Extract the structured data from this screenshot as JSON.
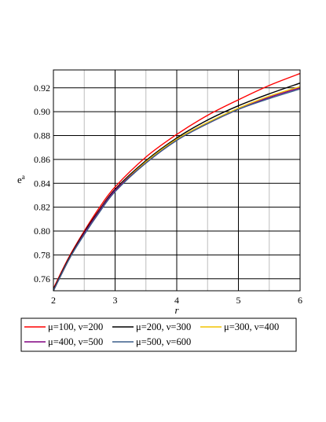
{
  "chart_data": {
    "type": "line",
    "title": "",
    "xlabel": "r",
    "ylabel": "e",
    "ylabel_sup": "a",
    "xlim": [
      2,
      6
    ],
    "ylim": [
      0.75,
      0.935
    ],
    "x_ticks": [
      "2",
      "3",
      "4",
      "5",
      "6"
    ],
    "y_ticks": [
      "0.76",
      "0.78",
      "0.80",
      "0.82",
      "0.84",
      "0.86",
      "0.88",
      "0.90",
      "0.92"
    ],
    "grid": true,
    "legend_position": "bottom",
    "series": [
      {
        "name": "μ=100, ν=200",
        "color": "#ff0000",
        "x": [
          2,
          2.25,
          2.5,
          2.75,
          3,
          3.5,
          4,
          4.5,
          5,
          5.5,
          6
        ],
        "y": [
          0.752,
          0.778,
          0.8,
          0.82,
          0.837,
          0.862,
          0.881,
          0.897,
          0.91,
          0.922,
          0.932
        ]
      },
      {
        "name": "μ=200, ν=300",
        "color": "#000000",
        "x": [
          2,
          2.25,
          2.5,
          2.75,
          3,
          3.5,
          4,
          4.5,
          5,
          5.5,
          6
        ],
        "y": [
          0.751,
          0.777,
          0.799,
          0.818,
          0.835,
          0.859,
          0.878,
          0.893,
          0.905,
          0.915,
          0.924
        ]
      },
      {
        "name": "μ=300, ν=400",
        "color": "#f2c300",
        "x": [
          2,
          2.25,
          2.5,
          2.75,
          3,
          3.5,
          4,
          4.5,
          5,
          5.5,
          6
        ],
        "y": [
          0.75,
          0.776,
          0.798,
          0.817,
          0.834,
          0.858,
          0.877,
          0.891,
          0.903,
          0.913,
          0.921
        ]
      },
      {
        "name": "μ=400, ν=500",
        "color": "#800080",
        "x": [
          2,
          2.25,
          2.5,
          2.75,
          3,
          3.5,
          4,
          4.5,
          5,
          5.5,
          6
        ],
        "y": [
          0.75,
          0.776,
          0.798,
          0.817,
          0.834,
          0.857,
          0.876,
          0.89,
          0.902,
          0.912,
          0.92
        ]
      },
      {
        "name": "μ=500, ν=600",
        "color": "#3a5f8a",
        "x": [
          2,
          2.25,
          2.5,
          2.75,
          3,
          3.5,
          4,
          4.5,
          5,
          5.5,
          6
        ],
        "y": [
          0.75,
          0.776,
          0.797,
          0.816,
          0.833,
          0.857,
          0.876,
          0.89,
          0.902,
          0.911,
          0.919
        ]
      }
    ]
  }
}
